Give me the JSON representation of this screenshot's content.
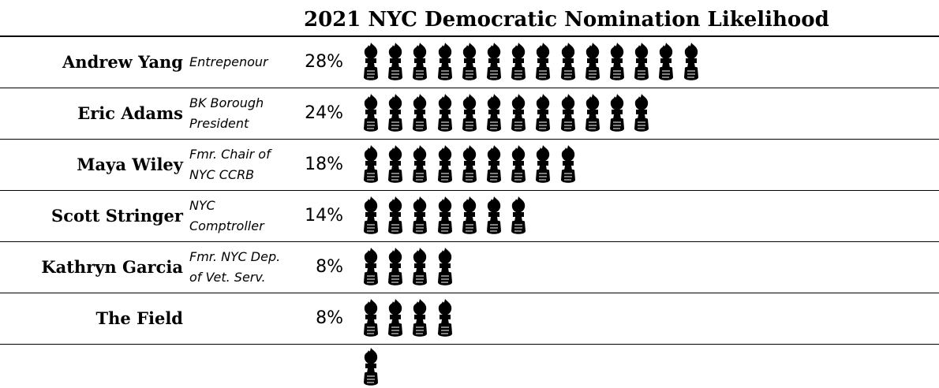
{
  "chart_data": {
    "type": "pictograph",
    "title": "2021 NYC Democratic Nomination Likelihood",
    "unit": "%",
    "icon": "torch-hand-icon",
    "rows": [
      {
        "name": "Andrew Yang",
        "role_lines": [
          "Entrepenour"
        ],
        "value": 28,
        "label": "28%"
      },
      {
        "name": "Eric Adams",
        "role_lines": [
          "BK Borough",
          "President"
        ],
        "value": 24,
        "label": "24%"
      },
      {
        "name": "Maya Wiley",
        "role_lines": [
          "Fmr. Chair of",
          "NYC CCRB"
        ],
        "value": 18,
        "label": "18%"
      },
      {
        "name": "Scott Stringer",
        "role_lines": [
          "NYC",
          "Comptroller"
        ],
        "value": 14,
        "label": "14%"
      },
      {
        "name": "Kathryn Garcia",
        "role_lines": [
          "Fmr. NYC Dep.",
          "of Vet. Serv."
        ],
        "value": 8,
        "label": "8%"
      },
      {
        "name": "The Field",
        "role_lines": [],
        "value": 8,
        "label": "8%"
      }
    ],
    "percent_per_icon": 2,
    "colors": {
      "icon": "#000000",
      "rule": "#000000",
      "text": "#000000"
    }
  }
}
